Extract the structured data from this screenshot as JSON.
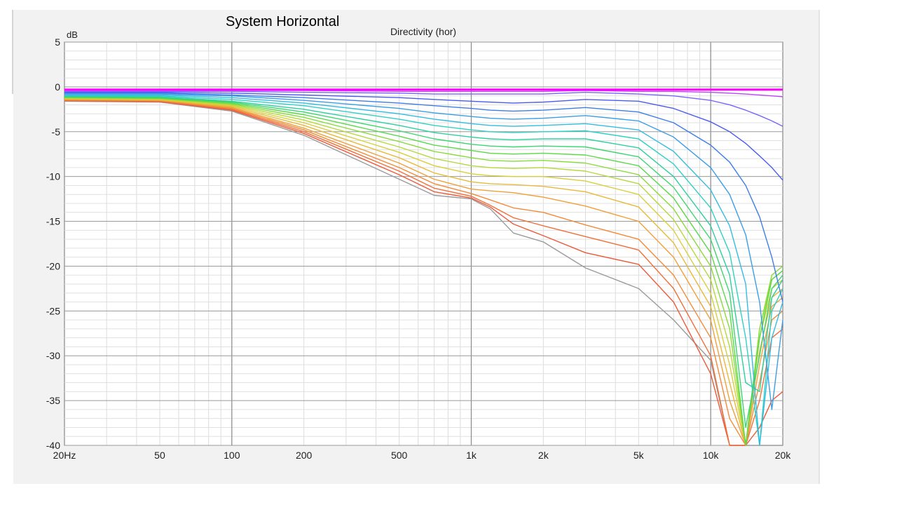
{
  "slide_title": "System Horizontal",
  "chart_data": {
    "type": "line",
    "title": "Directivity (hor)",
    "y_unit": "dB",
    "x_scale": "log",
    "xlim": [
      20,
      20000
    ],
    "ylim": [
      -40,
      5
    ],
    "x_ticks": [
      20,
      50,
      100,
      200,
      500,
      1000,
      2000,
      5000,
      10000,
      20000
    ],
    "x_tick_labels": [
      "20Hz",
      "50",
      "100",
      "200",
      "500",
      "1k",
      "2k",
      "5k",
      "10k",
      "20k"
    ],
    "y_ticks": [
      5,
      0,
      -5,
      -10,
      -15,
      -20,
      -25,
      -30,
      -35,
      -40
    ],
    "y_tick_labels": [
      "5",
      "0",
      "-5",
      "-10",
      "-15",
      "-20",
      "-25",
      "-30",
      "-35",
      "-40"
    ],
    "grid": true,
    "legend": "none",
    "colors": [
      "#ff00ff",
      "#bb44ff",
      "#7766ff",
      "#4a5cf0",
      "#3d7ee8",
      "#3b9ee6",
      "#33bce0",
      "#2fd0c6",
      "#2ecfa0",
      "#3cd670",
      "#5bd94a",
      "#88dc3a",
      "#b6d83c",
      "#d8cf3c",
      "#e8b93a",
      "#f0a03a",
      "#f28a3a",
      "#f0703a",
      "#ec5a3a",
      "#9a9a9a"
    ],
    "x": [
      20,
      50,
      100,
      200,
      500,
      700,
      1000,
      1200,
      1500,
      2000,
      3000,
      5000,
      7000,
      10000,
      12000,
      14000,
      16000,
      18000,
      20000
    ],
    "series": [
      {
        "values": [
          -0.3,
          -0.3,
          -0.3,
          -0.3,
          -0.3,
          -0.3,
          -0.3,
          -0.3,
          -0.3,
          -0.3,
          -0.3,
          -0.3,
          -0.3,
          -0.3,
          -0.3,
          -0.3,
          -0.3,
          -0.3,
          -0.3
        ]
      },
      {
        "values": [
          -0.4,
          -0.4,
          -0.4,
          -0.4,
          -0.5,
          -0.5,
          -0.5,
          -0.5,
          -0.5,
          -0.5,
          -0.4,
          -0.5,
          -0.5,
          -0.6,
          -0.7,
          -0.8,
          -0.9,
          -1.0,
          -1.1
        ]
      },
      {
        "values": [
          -0.5,
          -0.5,
          -0.5,
          -0.6,
          -0.7,
          -0.8,
          -0.8,
          -0.8,
          -0.8,
          -0.8,
          -0.6,
          -0.8,
          -1.0,
          -1.5,
          -2.0,
          -2.6,
          -3.2,
          -3.8,
          -4.4
        ]
      },
      {
        "values": [
          -0.6,
          -0.6,
          -0.7,
          -0.9,
          -1.2,
          -1.4,
          -1.6,
          -1.7,
          -1.8,
          -1.7,
          -1.4,
          -1.6,
          -2.4,
          -3.9,
          -5.0,
          -6.3,
          -7.7,
          -9.0,
          -10.4
        ]
      },
      {
        "values": [
          -0.7,
          -0.7,
          -0.9,
          -1.2,
          -1.8,
          -2.1,
          -2.4,
          -2.6,
          -2.7,
          -2.6,
          -2.3,
          -2.8,
          -4.0,
          -6.5,
          -8.4,
          -11.0,
          -14.5,
          -19.0,
          -24.0
        ]
      },
      {
        "values": [
          -0.8,
          -0.8,
          -1.0,
          -1.5,
          -2.4,
          -2.9,
          -3.3,
          -3.5,
          -3.6,
          -3.5,
          -3.2,
          -3.8,
          -5.6,
          -9.0,
          -12.0,
          -16.5,
          -24.0,
          -36.0,
          -26.0
        ]
      },
      {
        "values": [
          -0.9,
          -0.9,
          -1.2,
          -1.8,
          -3.0,
          -3.6,
          -4.1,
          -4.3,
          -4.4,
          -4.3,
          -4.1,
          -4.8,
          -7.2,
          -11.5,
          -15.5,
          -22.0,
          -40.0,
          -28.0,
          -24.0
        ]
      },
      {
        "values": [
          -1.0,
          -1.0,
          -1.4,
          -2.1,
          -3.6,
          -4.3,
          -4.8,
          -5.0,
          -5.1,
          -5.0,
          -4.9,
          -5.8,
          -8.6,
          -13.5,
          -18.5,
          -28.0,
          -40.0,
          -25.0,
          -22.5
        ]
      },
      {
        "values": [
          -1.05,
          -1.1,
          -1.6,
          -2.5,
          -4.3,
          -5.1,
          -5.6,
          -5.8,
          -5.9,
          -5.8,
          -5.8,
          -6.8,
          -10.0,
          -15.5,
          -21.0,
          -33.0,
          -34.0,
          -23.5,
          -21.5
        ]
      },
      {
        "values": [
          -1.1,
          -1.2,
          -1.7,
          -2.8,
          -4.9,
          -5.8,
          -6.4,
          -6.6,
          -6.7,
          -6.6,
          -6.7,
          -7.8,
          -11.2,
          -17.0,
          -23.0,
          -38.0,
          -30.0,
          -22.5,
          -21.0
        ]
      },
      {
        "values": [
          -1.15,
          -1.25,
          -1.8,
          -3.1,
          -5.5,
          -6.5,
          -7.1,
          -7.4,
          -7.5,
          -7.4,
          -7.6,
          -8.8,
          -12.4,
          -18.5,
          -25.0,
          -40.0,
          -28.0,
          -21.5,
          -20.5
        ]
      },
      {
        "values": [
          -1.2,
          -1.3,
          -1.9,
          -3.4,
          -6.1,
          -7.2,
          -7.9,
          -8.2,
          -8.3,
          -8.2,
          -8.5,
          -9.8,
          -13.6,
          -20.0,
          -27.0,
          -40.0,
          -27.0,
          -21.0,
          -20.0
        ]
      },
      {
        "values": [
          -1.25,
          -1.35,
          -2.0,
          -3.7,
          -6.7,
          -8.0,
          -8.8,
          -9.0,
          -9.1,
          -9.0,
          -9.4,
          -10.8,
          -14.8,
          -21.5,
          -29.0,
          -40.0,
          -27.0,
          -21.5,
          -20.5
        ]
      },
      {
        "values": [
          -1.3,
          -1.4,
          -2.1,
          -4.0,
          -7.3,
          -8.8,
          -9.7,
          -9.9,
          -10.0,
          -10.0,
          -10.5,
          -12.0,
          -16.0,
          -23.0,
          -31.0,
          -40.0,
          -28.0,
          -22.5,
          -21.5
        ]
      },
      {
        "values": [
          -1.35,
          -1.45,
          -2.2,
          -4.3,
          -7.9,
          -9.6,
          -10.6,
          -10.8,
          -10.9,
          -11.1,
          -11.7,
          -13.4,
          -17.4,
          -24.5,
          -33.0,
          -40.0,
          -29.5,
          -23.5,
          -22.5
        ]
      },
      {
        "values": [
          -1.4,
          -1.5,
          -2.3,
          -4.6,
          -8.5,
          -10.3,
          -11.4,
          -11.6,
          -11.8,
          -12.3,
          -13.3,
          -15.0,
          -19.0,
          -26.0,
          -35.0,
          -40.0,
          -31.0,
          -24.5,
          -23.5
        ]
      },
      {
        "values": [
          -1.45,
          -1.55,
          -2.4,
          -4.8,
          -9.0,
          -10.8,
          -11.9,
          -12.6,
          -13.5,
          -14.0,
          -15.4,
          -17.0,
          -21.0,
          -28.0,
          -37.0,
          -40.0,
          -33.0,
          -26.0,
          -25.0
        ]
      },
      {
        "values": [
          -1.5,
          -1.6,
          -2.5,
          -5.0,
          -9.4,
          -11.3,
          -12.2,
          -13.2,
          -14.6,
          -15.5,
          -16.7,
          -18.2,
          -22.5,
          -30.0,
          -40.0,
          -40.0,
          -35.0,
          -28.0,
          -27.0
        ]
      },
      {
        "values": [
          -1.55,
          -1.65,
          -2.6,
          -5.2,
          -9.8,
          -11.7,
          -12.4,
          -13.4,
          -15.3,
          -16.6,
          -18.5,
          -19.8,
          -24.0,
          -32.0,
          -40.0,
          -40.0,
          -38.0,
          -35.0,
          -34.0
        ]
      },
      {
        "values": [
          -1.6,
          -1.7,
          -2.7,
          -5.4,
          -10.3,
          -12.1,
          -12.5,
          -13.6,
          -16.3,
          -17.3,
          -20.2,
          -22.5,
          -26.0,
          -30.5,
          -40.0,
          -40.0,
          -40.0,
          -40.0,
          -40.0
        ]
      }
    ]
  }
}
